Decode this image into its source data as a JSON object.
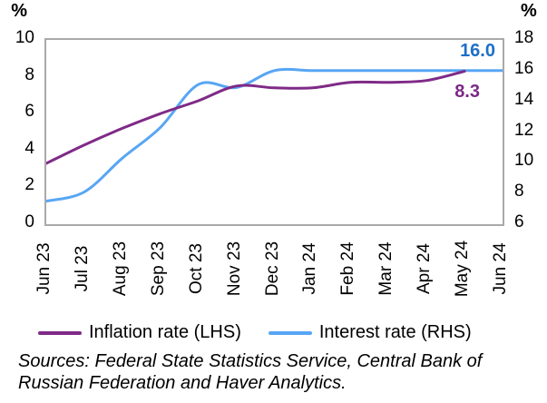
{
  "chart_data": {
    "type": "line",
    "x": [
      "Jun 23",
      "Jul 23",
      "Aug 23",
      "Sep 23",
      "Oct 23",
      "Nov 23",
      "Dec 23",
      "Jan 24",
      "Feb 24",
      "Mar 24",
      "Apr 24",
      "May 24",
      "Jun 24"
    ],
    "series": [
      {
        "name": "Inflation rate (LHS)",
        "axis": "left",
        "color": "#7F2A87",
        "label_color": "#7C2987",
        "values": [
          3.3,
          4.3,
          5.2,
          6.0,
          6.7,
          7.5,
          7.4,
          7.4,
          7.7,
          7.7,
          7.8,
          8.3
        ],
        "end_label": "8.3"
      },
      {
        "name": "Interest rate (RHS)",
        "axis": "right",
        "color": "#58A6F4",
        "label_color": "#1D6FC7",
        "values": [
          7.5,
          8.1,
          10.3,
          12.3,
          15.1,
          14.9,
          16.0,
          16.0,
          16.0,
          16.0,
          16.0,
          16.0,
          16.0
        ],
        "end_label": "16.0"
      }
    ],
    "left_axis": {
      "unit": "%",
      "min": 0,
      "max": 10,
      "ticks": [
        10,
        8,
        6,
        4,
        2,
        0
      ]
    },
    "right_axis": {
      "unit": "%",
      "min": 6,
      "max": 18,
      "ticks": [
        18,
        16,
        14,
        12,
        10,
        8,
        6
      ]
    },
    "grid": false,
    "legend_position": "bottom",
    "plot_border_color": "#A9A9A9"
  },
  "source": {
    "text": "Sources: Federal State Statistics Service, Central Bank of Russian Federation and Haver Analytics.",
    "lines": [
      "Sources: Federal State Statistics Service, Central Bank of",
      "Russian Federation and Haver Analytics."
    ]
  }
}
